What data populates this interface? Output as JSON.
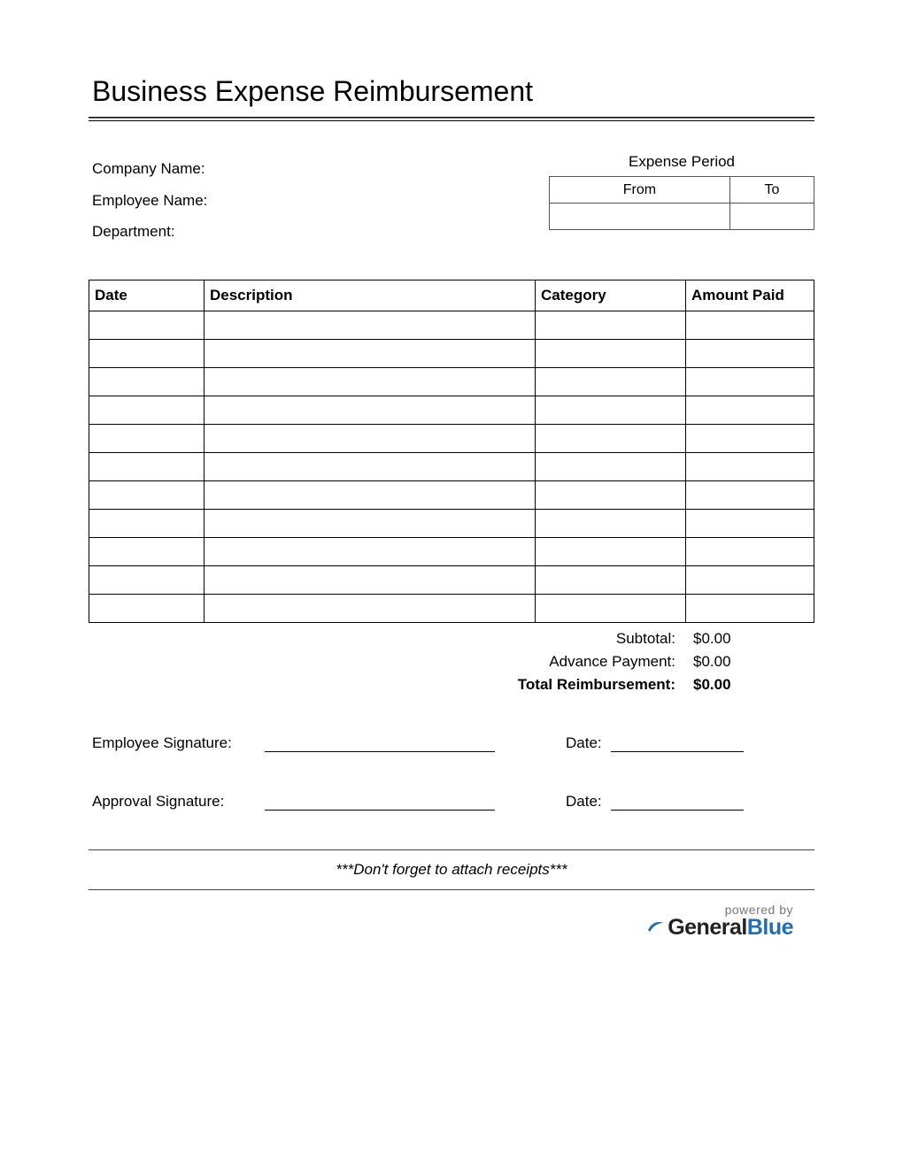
{
  "title": "Business Expense Reimbursement",
  "meta": {
    "company_label": "Company Name:",
    "employee_label": "Employee Name:",
    "department_label": "Department:"
  },
  "period": {
    "heading": "Expense Period",
    "from_label": "From",
    "to_label": "To",
    "from_value": "",
    "to_value": ""
  },
  "table": {
    "columns": [
      "Date",
      "Description",
      "Category",
      "Amount Paid"
    ],
    "row_count": 11
  },
  "totals": {
    "subtotal_label": "Subtotal:",
    "subtotal_value": "$0.00",
    "advance_label": "Advance Payment:",
    "advance_value": "$0.00",
    "total_label": "Total Reimbursement:",
    "total_value": "$0.00"
  },
  "signatures": {
    "employee_label": "Employee Signature:",
    "approval_label": "Approval Signature:",
    "date_label": "Date:"
  },
  "reminder": "***Don't forget to attach receipts***",
  "footer": {
    "powered": "powered by",
    "brand_general": "General",
    "brand_blue": "Blue"
  },
  "style": {
    "border_color": "#000000",
    "period_border_color": "#555555",
    "text_color": "#000000",
    "brand_blue_color": "#1f6fb2",
    "brand_dark_color": "#222222",
    "title_fontsize": 32,
    "body_fontsize": 17
  }
}
